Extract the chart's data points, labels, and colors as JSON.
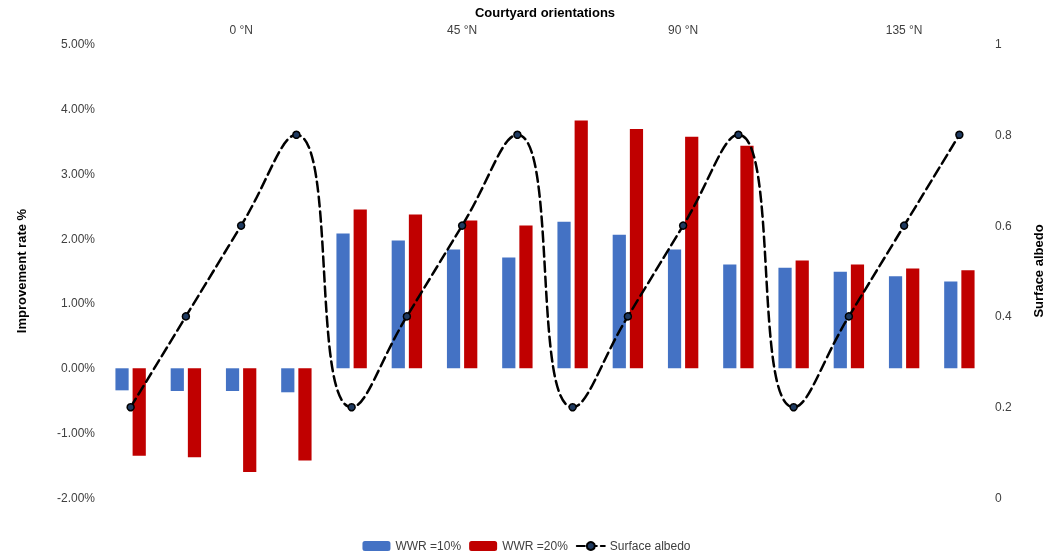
{
  "chart_data": {
    "type": "bar",
    "xlabel": "Courtyard orientations",
    "ylabel": "Improvement rate %",
    "y2label": "Surface albedo",
    "categories": [
      null,
      null,
      "0 °N",
      null,
      null,
      null,
      "45 °N",
      null,
      null,
      null,
      "90 °N",
      null,
      null,
      null,
      "135 °N",
      null
    ],
    "series": [
      {
        "name": "WWR =10%",
        "color": "#4472c4",
        "values": [
          -0.34,
          -0.35,
          -0.35,
          -0.37,
          2.08,
          1.97,
          1.83,
          1.71,
          2.26,
          2.06,
          1.83,
          1.6,
          1.55,
          1.49,
          1.42,
          1.34
        ]
      },
      {
        "name": "WWR =20%",
        "color": "#c00000",
        "values": [
          -1.35,
          -1.37,
          -1.6,
          -1.42,
          2.45,
          2.37,
          2.28,
          2.2,
          3.82,
          3.69,
          3.57,
          3.43,
          1.66,
          1.6,
          1.54,
          1.51
        ]
      },
      {
        "name": "Surface albedo",
        "type": "line",
        "axis": "y2",
        "color": "#000000",
        "line_style": "dashed",
        "marker": "circle",
        "values": [
          0.2,
          0.4,
          0.6,
          0.8,
          0.2,
          0.4,
          0.6,
          0.8,
          0.2,
          0.4,
          0.6,
          0.8,
          0.2,
          0.4,
          0.6,
          0.8
        ]
      }
    ],
    "ylim": [
      -2,
      5
    ],
    "yticks": [
      {
        "value": -2,
        "label": "-2.00%"
      },
      {
        "value": -1,
        "label": "-1.00%"
      },
      {
        "value": 0,
        "label": "0.00%"
      },
      {
        "value": 1,
        "label": "1.00%"
      },
      {
        "value": 2,
        "label": "2.00%"
      },
      {
        "value": 3,
        "label": "3.00%"
      },
      {
        "value": 4,
        "label": "4.00%"
      },
      {
        "value": 5,
        "label": "5.00%"
      }
    ],
    "y2lim": [
      0,
      1
    ],
    "y2ticks": [
      0,
      0.2,
      0.4,
      0.6,
      0.8,
      1
    ],
    "grid": false,
    "legend": "bottom"
  }
}
